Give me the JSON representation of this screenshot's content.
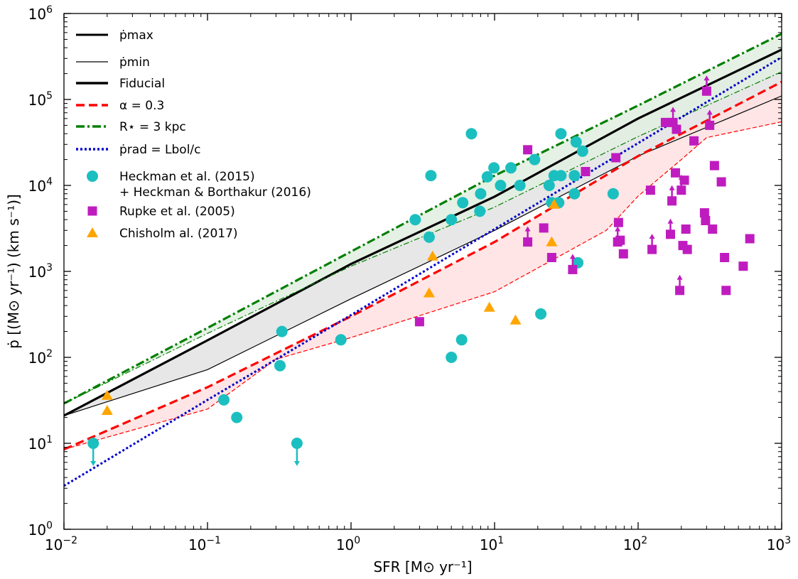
{
  "chart_data": {
    "type": "scatter",
    "x_scale": "log",
    "y_scale": "log",
    "xlim": [
      0.01,
      1000
    ],
    "ylim": [
      1,
      1000000
    ],
    "xlabel": "SFR [M⊙ yr⁻¹]",
    "ylabel": "ṗ [(M⊙ yr⁻¹) (km s⁻¹)]",
    "x_ticks": [
      {
        "base": "10",
        "exp": "−2",
        "value": 0.01
      },
      {
        "base": "10",
        "exp": "−1",
        "value": 0.1
      },
      {
        "base": "10",
        "exp": "0",
        "value": 1
      },
      {
        "base": "10",
        "exp": "1",
        "value": 10
      },
      {
        "base": "10",
        "exp": "2",
        "value": 100
      },
      {
        "base": "10",
        "exp": "3",
        "value": 1000
      }
    ],
    "y_ticks": [
      {
        "base": "10",
        "exp": "0",
        "value": 1
      },
      {
        "base": "10",
        "exp": "1",
        "value": 10
      },
      {
        "base": "10",
        "exp": "2",
        "value": 100
      },
      {
        "base": "10",
        "exp": "3",
        "value": 1000
      },
      {
        "base": "10",
        "exp": "4",
        "value": 10000
      },
      {
        "base": "10",
        "exp": "5",
        "value": 100000
      },
      {
        "base": "10",
        "exp": "6",
        "value": 1000000
      }
    ],
    "legend_position": "top-left",
    "legend": [
      {
        "label": "ṗmax",
        "kind": "line",
        "color": "#000000",
        "dash": "solid",
        "width": 3
      },
      {
        "label": "ṗmin",
        "kind": "line",
        "color": "#000000",
        "dash": "solid",
        "width": 1.2
      },
      {
        "label": "Fiducial",
        "kind": "line",
        "color": "#000000",
        "dash": "solid",
        "width": 3.5
      },
      {
        "label": "α = 0.3",
        "kind": "line",
        "color": "#ff0000",
        "dash": "dashed",
        "width": 3.5
      },
      {
        "label": "R⋆ = 3 kpc",
        "kind": "line",
        "color": "#007f00",
        "dash": "dashdot",
        "width": 3.5
      },
      {
        "label": "ṗrad = Lbol/c",
        "kind": "line",
        "color": "#0000cc",
        "dash": "dotted",
        "width": 3.5
      },
      {
        "label": "Heckman et al. (2015)",
        "label2": "+ Heckman & Borthakur (2016)",
        "kind": "circle",
        "color": "#1cbfbf"
      },
      {
        "label": "Rupke et al. (2005)",
        "kind": "square",
        "color": "#bf1cbf"
      },
      {
        "label": "Chisholm al. (2017)",
        "kind": "triangle",
        "color": "#ffa500"
      }
    ],
    "bands": [
      {
        "name": "Fiducial",
        "color": "#000000",
        "fill": "#e3e3e3",
        "upper": [
          [
            0.01,
            21
          ],
          [
            0.1,
            158
          ],
          [
            1,
            1220
          ],
          [
            10,
            7400
          ],
          [
            100,
            60000
          ],
          [
            1000,
            380000
          ]
        ],
        "lower": [
          [
            0.01,
            21
          ],
          [
            0.1,
            72
          ],
          [
            1,
            480
          ],
          [
            10,
            3000
          ],
          [
            100,
            22000
          ],
          [
            1000,
            110000
          ]
        ]
      },
      {
        "name": "α = 0.3",
        "color": "#ff0000",
        "fill": "#ffe0e0",
        "upper": [
          [
            0.01,
            8.5
          ],
          [
            0.1,
            45
          ],
          [
            1,
            300
          ],
          [
            10,
            2200
          ],
          [
            100,
            22000
          ],
          [
            1000,
            160000
          ]
        ],
        "lower": [
          [
            0.01,
            8.5
          ],
          [
            0.1,
            25
          ],
          [
            0.3,
            95
          ],
          [
            1,
            170
          ],
          [
            10,
            580
          ],
          [
            60,
            3000
          ],
          [
            100,
            7500
          ],
          [
            200,
            20000
          ],
          [
            300,
            36000
          ],
          [
            1000,
            55000
          ]
        ]
      },
      {
        "name": "R⋆ = 3 kpc",
        "color": "#007f00",
        "fill": "#e1efe1",
        "upper": [
          [
            0.01,
            29
          ],
          [
            0.1,
            220
          ],
          [
            1,
            1700
          ],
          [
            10,
            13000
          ],
          [
            100,
            85000
          ],
          [
            1000,
            580000
          ]
        ],
        "lower": [
          [
            0.01,
            29
          ],
          [
            0.1,
            190
          ],
          [
            1,
            1150
          ],
          [
            10,
            5600
          ],
          [
            100,
            37000
          ],
          [
            1000,
            210000
          ]
        ]
      }
    ],
    "rad_line": {
      "name": "ṗrad = Lbol/c",
      "color": "#0000cc",
      "points": [
        [
          0.01,
          3.2
        ],
        [
          0.1,
          32
        ],
        [
          1,
          310
        ],
        [
          10,
          3100
        ],
        [
          100,
          31000
        ],
        [
          1000,
          310000
        ]
      ]
    },
    "series": [
      {
        "name": "Heckman et al. (2015) + Heckman & Borthakur (2016)",
        "marker": "circle",
        "color": "#1cbfbf",
        "x": [
          0.016,
          0.13,
          0.16,
          0.32,
          0.33,
          0.42,
          0.85,
          2.8,
          3.5,
          3.6,
          5.0,
          5.0,
          5.9,
          6.0,
          6.9,
          7.9,
          8.0,
          8.9,
          9.9,
          11,
          13,
          15,
          19,
          21,
          24,
          25,
          26,
          28,
          29,
          29,
          36,
          36,
          37,
          38,
          41,
          67
        ],
        "y": [
          10,
          32,
          20,
          80,
          200,
          10,
          160,
          4000,
          2500,
          13000,
          100,
          4000,
          160,
          6300,
          40000,
          5000,
          8000,
          12600,
          16000,
          10000,
          16000,
          10000,
          20000,
          320,
          10000,
          6300,
          13000,
          6300,
          40000,
          13000,
          8000,
          13000,
          32000,
          1260,
          25000,
          8000
        ],
        "upper_limits": [
          0,
          5
        ]
      },
      {
        "name": "Rupke et al. (2005)",
        "marker": "square",
        "color": "#bf1cbf",
        "x": [
          3.0,
          17,
          17,
          22,
          25,
          35,
          43,
          70,
          72,
          73,
          75,
          79,
          122,
          125,
          155,
          168,
          172,
          175,
          182,
          185,
          195,
          200,
          205,
          210,
          215,
          220,
          245,
          290,
          295,
          300,
          315,
          330,
          340,
          380,
          400,
          410,
          540,
          600
        ],
        "y": [
          260,
          26000,
          2200,
          3200,
          1450,
          1050,
          14500,
          21000,
          2200,
          3700,
          2300,
          1600,
          8800,
          1800,
          54000,
          2700,
          6600,
          54000,
          14000,
          45000,
          600,
          8800,
          2000,
          11500,
          3100,
          1800,
          33000,
          4800,
          3900,
          125000,
          50000,
          3100,
          17000,
          11000,
          1450,
          600,
          1150,
          2400
        ],
        "lower_limits": [
          2,
          5,
          8,
          13,
          15,
          16,
          17,
          20,
          21,
          29,
          30
        ]
      },
      {
        "name": "Chisholm al. (2017)",
        "marker": "triangle",
        "color": "#ffa500",
        "x": [
          0.02,
          0.02,
          3.5,
          3.7,
          9.2,
          14,
          25,
          26
        ],
        "y": [
          36,
          24,
          560,
          1500,
          380,
          270,
          2200,
          6000
        ]
      }
    ]
  }
}
